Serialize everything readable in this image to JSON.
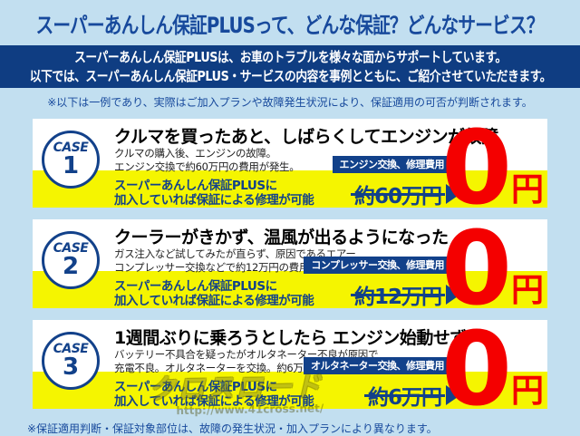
{
  "colors": {
    "background": "#c2dff0",
    "navy": "#12418a",
    "title_blue": "#17499c",
    "highlight_yellow": "#f5f500",
    "price_red": "#f40000"
  },
  "header": {
    "title": "スーパーあんしん保証PLUSって、どんな保証？どんなサービス？",
    "intro_line1": "スーパーあんしん保証PLUSは、お車のトラブルを様々な面からサポートしています。",
    "intro_line2": "以下では、スーパーあんしん保証PLUS・サービスの内容を事例とともに、ご紹介させていただきます。",
    "top_note": "※以下は一例であり、実際はご加入プランや故障発生状況により、保証適用の可否が判断されます。"
  },
  "cases": [
    {
      "badge_word": "CASE",
      "badge_number": "1",
      "headline": "クルマを買ったあと、しばらくしてエンジンが故障",
      "desc_line1": "クルマの購入後、エンジンの故障。",
      "desc_line2": "エンジン交換で約60万円の費用が発生。",
      "cost_label": "エンジン交換、修理費用",
      "benefit_line1": "スーパーあんしん保証PLUSに",
      "benefit_line2": "加入していれば保証による修理が可能",
      "original_price": "約60万円",
      "final_price_value": "0",
      "final_price_unit": "円"
    },
    {
      "badge_word": "CASE",
      "badge_number": "2",
      "headline": "クーラーがきかず、温風が出るようになった",
      "desc_line1": "ガス注入など試してみたが直らず、原因であるエアー",
      "desc_line2": "コンプレッサー交換などで約12万円の費用が発生。",
      "cost_label": "コンプレッサー交換、修理費用",
      "benefit_line1": "スーパーあんしん保証PLUSに",
      "benefit_line2": "加入していれば保証による修理が可能",
      "original_price": "約12万円",
      "final_price_value": "0",
      "final_price_unit": "円"
    },
    {
      "badge_word": "CASE",
      "badge_number": "3",
      "headline": "1週間ぶりに乗ろうとしたら エンジン始動せず",
      "desc_line1": "バッテリー不具合を疑ったがオルタネーター不良が原因で",
      "desc_line2": "充電不良。オルタネーターを交換。約6万円の費用が発生。",
      "cost_label": "オルタネーター交換、修理費用",
      "benefit_line1": "スーパーあんしん保証PLUSに",
      "benefit_line2": "加入していれば保証による修理が可能",
      "original_price": "約6万円",
      "final_price_value": "0",
      "final_price_unit": "円"
    }
  ],
  "watermark": {
    "logo_text": "クロスロード",
    "url_text": "http://www.41cross.net/"
  },
  "footer": {
    "bottom_note": "※保証適用判断・保証対象部位は、故障の発生状況・加入プランにより異なります。"
  }
}
